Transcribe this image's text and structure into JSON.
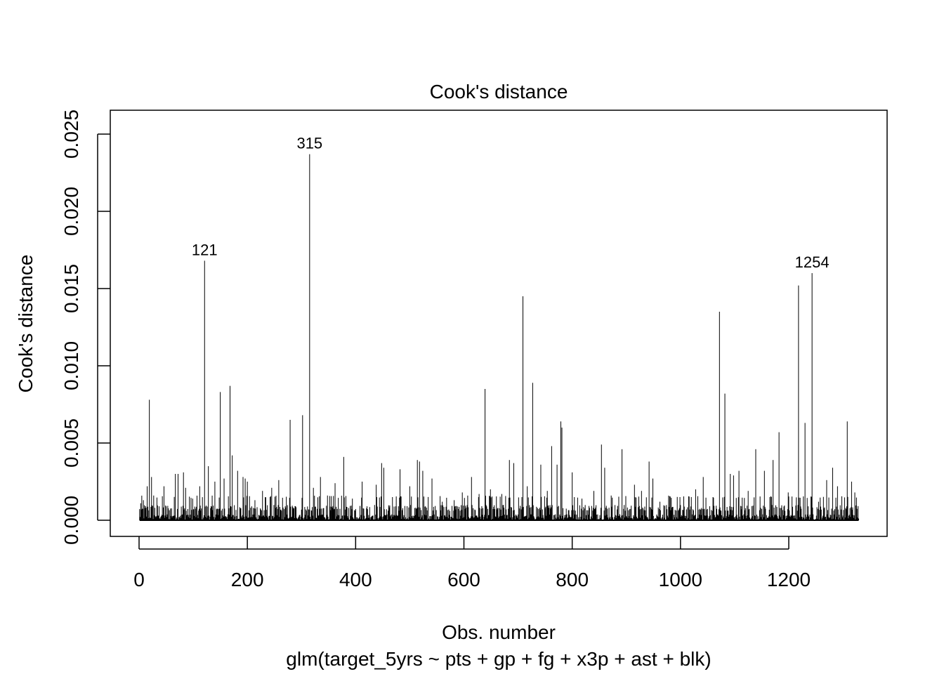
{
  "chart_data": {
    "type": "bar",
    "title": "Cook's distance",
    "xlabel": "Obs. number",
    "subtitle": "glm(target_5yrs ~ pts + gp + fg + x3p + ast + blk)",
    "ylabel": "Cook's distance",
    "xlim": [
      0,
      1340
    ],
    "ylim": [
      0,
      0.025
    ],
    "x_ticks": [
      0,
      200,
      400,
      600,
      800,
      1000,
      1200
    ],
    "x_tick_labels": [
      "0",
      "200",
      "400",
      "600",
      "800",
      "1000",
      "1200"
    ],
    "y_ticks": [
      0,
      0.005,
      0.01,
      0.015,
      0.02,
      0.025
    ],
    "y_tick_labels": [
      "0.000",
      "0.005",
      "0.010",
      "0.015",
      "0.020",
      "0.025"
    ],
    "n_obs": 1329,
    "spikes": [
      {
        "x": 3,
        "y": 0.0011
      },
      {
        "x": 8,
        "y": 0.0013
      },
      {
        "x": 15,
        "y": 0.0022
      },
      {
        "x": 19,
        "y": 0.0078
      },
      {
        "x": 23,
        "y": 0.0028
      },
      {
        "x": 27,
        "y": 0.0016
      },
      {
        "x": 46,
        "y": 0.0022
      },
      {
        "x": 67,
        "y": 0.003
      },
      {
        "x": 72,
        "y": 0.003
      },
      {
        "x": 82,
        "y": 0.0031
      },
      {
        "x": 86,
        "y": 0.0021
      },
      {
        "x": 99,
        "y": 0.0014
      },
      {
        "x": 112,
        "y": 0.0022
      },
      {
        "x": 121,
        "y": 0.0168
      },
      {
        "x": 128,
        "y": 0.0035
      },
      {
        "x": 140,
        "y": 0.0025
      },
      {
        "x": 150,
        "y": 0.0083
      },
      {
        "x": 157,
        "y": 0.0027
      },
      {
        "x": 168,
        "y": 0.0087
      },
      {
        "x": 172,
        "y": 0.0042
      },
      {
        "x": 182,
        "y": 0.0032
      },
      {
        "x": 192,
        "y": 0.0028
      },
      {
        "x": 196,
        "y": 0.0027
      },
      {
        "x": 200,
        "y": 0.0025
      },
      {
        "x": 214,
        "y": 0.0013
      },
      {
        "x": 228,
        "y": 0.0019
      },
      {
        "x": 245,
        "y": 0.0021
      },
      {
        "x": 258,
        "y": 0.0026
      },
      {
        "x": 279,
        "y": 0.0065
      },
      {
        "x": 302,
        "y": 0.0068
      },
      {
        "x": 315,
        "y": 0.0237
      },
      {
        "x": 322,
        "y": 0.0021
      },
      {
        "x": 335,
        "y": 0.0028
      },
      {
        "x": 348,
        "y": 0.0016
      },
      {
        "x": 362,
        "y": 0.0024
      },
      {
        "x": 378,
        "y": 0.0041
      },
      {
        "x": 394,
        "y": 0.0014
      },
      {
        "x": 412,
        "y": 0.0025
      },
      {
        "x": 438,
        "y": 0.0023
      },
      {
        "x": 448,
        "y": 0.0037
      },
      {
        "x": 452,
        "y": 0.0034
      },
      {
        "x": 468,
        "y": 0.0015
      },
      {
        "x": 482,
        "y": 0.0033
      },
      {
        "x": 500,
        "y": 0.0022
      },
      {
        "x": 514,
        "y": 0.0039
      },
      {
        "x": 518,
        "y": 0.0038
      },
      {
        "x": 524,
        "y": 0.0032
      },
      {
        "x": 541,
        "y": 0.0027
      },
      {
        "x": 560,
        "y": 0.0012
      },
      {
        "x": 582,
        "y": 0.0013
      },
      {
        "x": 597,
        "y": 0.0018
      },
      {
        "x": 614,
        "y": 0.0028
      },
      {
        "x": 628,
        "y": 0.0017
      },
      {
        "x": 639,
        "y": 0.0085
      },
      {
        "x": 649,
        "y": 0.002
      },
      {
        "x": 670,
        "y": 0.0017
      },
      {
        "x": 684,
        "y": 0.0039
      },
      {
        "x": 692,
        "y": 0.0037
      },
      {
        "x": 709,
        "y": 0.0145
      },
      {
        "x": 717,
        "y": 0.0022
      },
      {
        "x": 727,
        "y": 0.0089
      },
      {
        "x": 742,
        "y": 0.0036
      },
      {
        "x": 754,
        "y": 0.0019
      },
      {
        "x": 762,
        "y": 0.0048
      },
      {
        "x": 772,
        "y": 0.0036
      },
      {
        "x": 779,
        "y": 0.0064
      },
      {
        "x": 781,
        "y": 0.006
      },
      {
        "x": 800,
        "y": 0.0031
      },
      {
        "x": 818,
        "y": 0.0014
      },
      {
        "x": 840,
        "y": 0.0019
      },
      {
        "x": 854,
        "y": 0.0049
      },
      {
        "x": 860,
        "y": 0.0034
      },
      {
        "x": 872,
        "y": 0.0016
      },
      {
        "x": 892,
        "y": 0.0046
      },
      {
        "x": 915,
        "y": 0.0023
      },
      {
        "x": 928,
        "y": 0.0019
      },
      {
        "x": 942,
        "y": 0.0038
      },
      {
        "x": 949,
        "y": 0.0027
      },
      {
        "x": 962,
        "y": 0.0012
      },
      {
        "x": 1028,
        "y": 0.002
      },
      {
        "x": 1042,
        "y": 0.0028
      },
      {
        "x": 1060,
        "y": 0.0015
      },
      {
        "x": 1072,
        "y": 0.0135
      },
      {
        "x": 1082,
        "y": 0.0082
      },
      {
        "x": 1092,
        "y": 0.003
      },
      {
        "x": 1098,
        "y": 0.0029
      },
      {
        "x": 1108,
        "y": 0.0032
      },
      {
        "x": 1125,
        "y": 0.0019
      },
      {
        "x": 1139,
        "y": 0.0046
      },
      {
        "x": 1155,
        "y": 0.0032
      },
      {
        "x": 1171,
        "y": 0.0039
      },
      {
        "x": 1182,
        "y": 0.0057
      },
      {
        "x": 1199,
        "y": 0.0018
      },
      {
        "x": 1218,
        "y": 0.0152
      },
      {
        "x": 1230,
        "y": 0.0063
      },
      {
        "x": 1243,
        "y": 0.016
      },
      {
        "x": 1255,
        "y": 0.0012
      },
      {
        "x": 1270,
        "y": 0.0026
      },
      {
        "x": 1281,
        "y": 0.0034
      },
      {
        "x": 1290,
        "y": 0.0022
      },
      {
        "x": 1308,
        "y": 0.0064
      },
      {
        "x": 1316,
        "y": 0.0025
      },
      {
        "x": 1322,
        "y": 0.0018
      }
    ],
    "annotations": [
      {
        "text": "121",
        "x": 121,
        "y": 0.0168
      },
      {
        "text": "315",
        "x": 315,
        "y": 0.0237
      },
      {
        "text": "1254",
        "x": 1243,
        "y": 0.016
      }
    ]
  }
}
